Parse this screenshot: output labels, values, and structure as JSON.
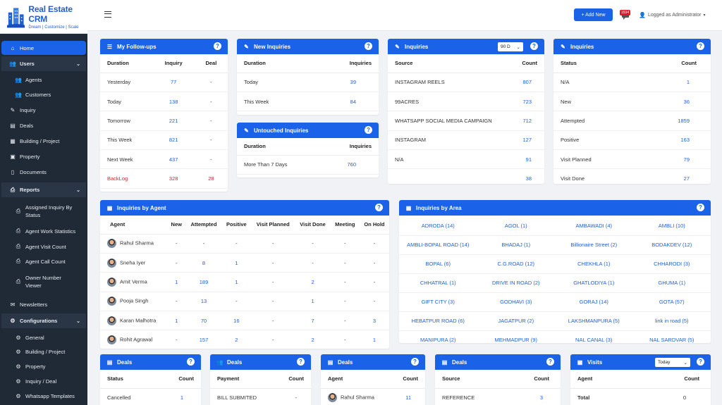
{
  "brand": {
    "title": "Real Estate CRM",
    "tagline": "Dream | Customize | Scale"
  },
  "topbar": {
    "add_new": "+ Add New",
    "notification_count": "1534",
    "logged_in": "Logged as Administrator"
  },
  "sidebar": {
    "items": [
      {
        "label": "Home",
        "icon": "home-icon"
      },
      {
        "label": "Users",
        "icon": "users-icon"
      },
      {
        "label": "Agents",
        "icon": "agents-icon"
      },
      {
        "label": "Customers",
        "icon": "customers-icon"
      },
      {
        "label": "Inquiry",
        "icon": "inquiry-icon"
      },
      {
        "label": "Deals",
        "icon": "deals-icon"
      },
      {
        "label": "Building / Project",
        "icon": "building-icon"
      },
      {
        "label": "Property",
        "icon": "property-icon"
      },
      {
        "label": "Documents",
        "icon": "documents-icon"
      },
      {
        "label": "Reports",
        "icon": "printer-icon"
      },
      {
        "label": "Assigned Inquiry By",
        "label2": "Status",
        "icon": "printer-icon"
      },
      {
        "label": "Agent Work Statistics",
        "icon": "printer-icon"
      },
      {
        "label": "Agent Visit Count",
        "icon": "printer-icon"
      },
      {
        "label": "Agent Call Count",
        "icon": "printer-icon"
      },
      {
        "label": "Owner Number",
        "label2": "Viewer",
        "icon": "printer-icon"
      },
      {
        "label": "Newsletters",
        "icon": "newsletter-icon"
      },
      {
        "label": "Configurations",
        "icon": "gears-icon"
      },
      {
        "label": "General",
        "icon": "gear-icon"
      },
      {
        "label": "Building / Project",
        "icon": "gear-icon"
      },
      {
        "label": "Property",
        "icon": "gear-icon"
      },
      {
        "label": "Inquiry / Deal",
        "icon": "gear-icon"
      },
      {
        "label": "Whatsapp Templates",
        "icon": "gear-icon"
      }
    ]
  },
  "followups": {
    "title": "My Follow-ups",
    "headers": [
      "Duration",
      "Inquiry",
      "Deal"
    ],
    "rows": [
      [
        "Yesterday",
        "77",
        "-"
      ],
      [
        "Today",
        "138",
        "-"
      ],
      [
        "Tomorrow",
        "221",
        "-"
      ],
      [
        "This Week",
        "821",
        "-"
      ],
      [
        "Next Week",
        "437",
        "-"
      ],
      [
        "BackLog",
        "328",
        "28"
      ]
    ]
  },
  "new_inquiries": {
    "title": "New Inquiries",
    "headers": [
      "Duration",
      "Inquiries"
    ],
    "rows": [
      [
        "Today",
        "39"
      ],
      [
        "This Week",
        "84"
      ]
    ]
  },
  "untouched": {
    "title": "Untouched Inquiries",
    "headers": [
      "Duration",
      "Inquiries"
    ],
    "rows": [
      [
        "More Than 7 Days",
        "760"
      ]
    ]
  },
  "inq_source": {
    "title": "Inquiries",
    "select": "90 D",
    "headers": [
      "Source",
      "Count"
    ],
    "rows": [
      [
        "INSTAGRAM REELS",
        "807"
      ],
      [
        "99ACRES",
        "723"
      ],
      [
        "WHATSAPP SOCIAL MEDIA CAMPAIGN",
        "712"
      ],
      [
        "INSTAGRAM",
        "127"
      ],
      [
        "N/A",
        "91"
      ],
      [
        "",
        "38"
      ]
    ]
  },
  "inq_status": {
    "title": "Inquiries",
    "headers": [
      "Status",
      "Count"
    ],
    "rows": [
      [
        "N/A",
        "1"
      ],
      [
        "New",
        "36"
      ],
      [
        "Attempted",
        "1859"
      ],
      [
        "Positive",
        "163"
      ],
      [
        "Visit Planned",
        "79"
      ],
      [
        "Visit Done",
        "27"
      ]
    ]
  },
  "by_agent": {
    "title": "Inquiries by Agent",
    "headers": [
      "Agent",
      "New",
      "Attempted",
      "Positive",
      "Visit Planned",
      "Visit Done",
      "Meeting",
      "On Hold"
    ],
    "rows": [
      [
        "Rahul Sharma",
        "-",
        "-",
        "-",
        "-",
        "-",
        "-",
        "-"
      ],
      [
        "Sneha Iyer",
        "-",
        "8",
        "1",
        "-",
        "-",
        "-",
        "-"
      ],
      [
        "Amit Verma",
        "1",
        "189",
        "1",
        "-",
        "2",
        "-",
        "-"
      ],
      [
        "Pooja Singh",
        "-",
        "13",
        "-",
        "-",
        "1",
        "-",
        "-"
      ],
      [
        "Karan Malhotra",
        "1",
        "70",
        "16",
        "-",
        "7",
        "-",
        "3"
      ],
      [
        "Rohit Agrawal",
        "-",
        "157",
        "2",
        "-",
        "2",
        "-",
        "1"
      ]
    ]
  },
  "by_area": {
    "title": "Inquiries by Area",
    "rows": [
      [
        "ADRODA (14)",
        "AGOL (1)",
        "AMBAWADI (4)",
        "AMBLI (10)"
      ],
      [
        "AMBLI-BOPAL ROAD (14)",
        "BHADAJ (1)",
        "Billionaire Street (2)",
        "BODAKDEV (12)"
      ],
      [
        "BOPAL (6)",
        "C.G.ROAD (12)",
        "CHEKHLA (1)",
        "CHHARODI (3)"
      ],
      [
        "CHHATRAL (1)",
        "DRIVE IN ROAD (2)",
        "GHATLODIYA (1)",
        "GHUMA (1)"
      ],
      [
        "GIFT CITY (3)",
        "GODHAVI (3)",
        "GORAJ (14)",
        "GOTA (57)"
      ],
      [
        "HEBATPUR ROAD (6)",
        "JAGATPUR (2)",
        "LAKSHMANPURA (5)",
        "link in road (5)"
      ],
      [
        "MANIPURA (2)",
        "MEHMADPUR (9)",
        "NAL CANAL (3)",
        "NAL SARDVAR (5)"
      ]
    ]
  },
  "deals_status": {
    "title": "Deals",
    "headers": [
      "Status",
      "Count"
    ],
    "rows": [
      [
        "Cancelled",
        "1"
      ]
    ]
  },
  "deals_payment": {
    "title": "Deals",
    "headers": [
      "Payment",
      "Count"
    ],
    "rows": [
      [
        "BILL SUBMITED",
        "-"
      ]
    ]
  },
  "deals_agent": {
    "title": "Deals",
    "headers": [
      "Agent",
      "Count"
    ],
    "rows": [
      [
        "Rahul Sharma",
        "11"
      ]
    ]
  },
  "deals_source": {
    "title": "Deals",
    "headers": [
      "Source",
      "Count"
    ],
    "rows": [
      [
        "REFERENCE",
        "3"
      ]
    ]
  },
  "visits": {
    "title": "Visits",
    "select": "Today",
    "headers": [
      "Agent",
      "Count"
    ],
    "rows": [
      [
        "Total",
        "0"
      ]
    ]
  }
}
